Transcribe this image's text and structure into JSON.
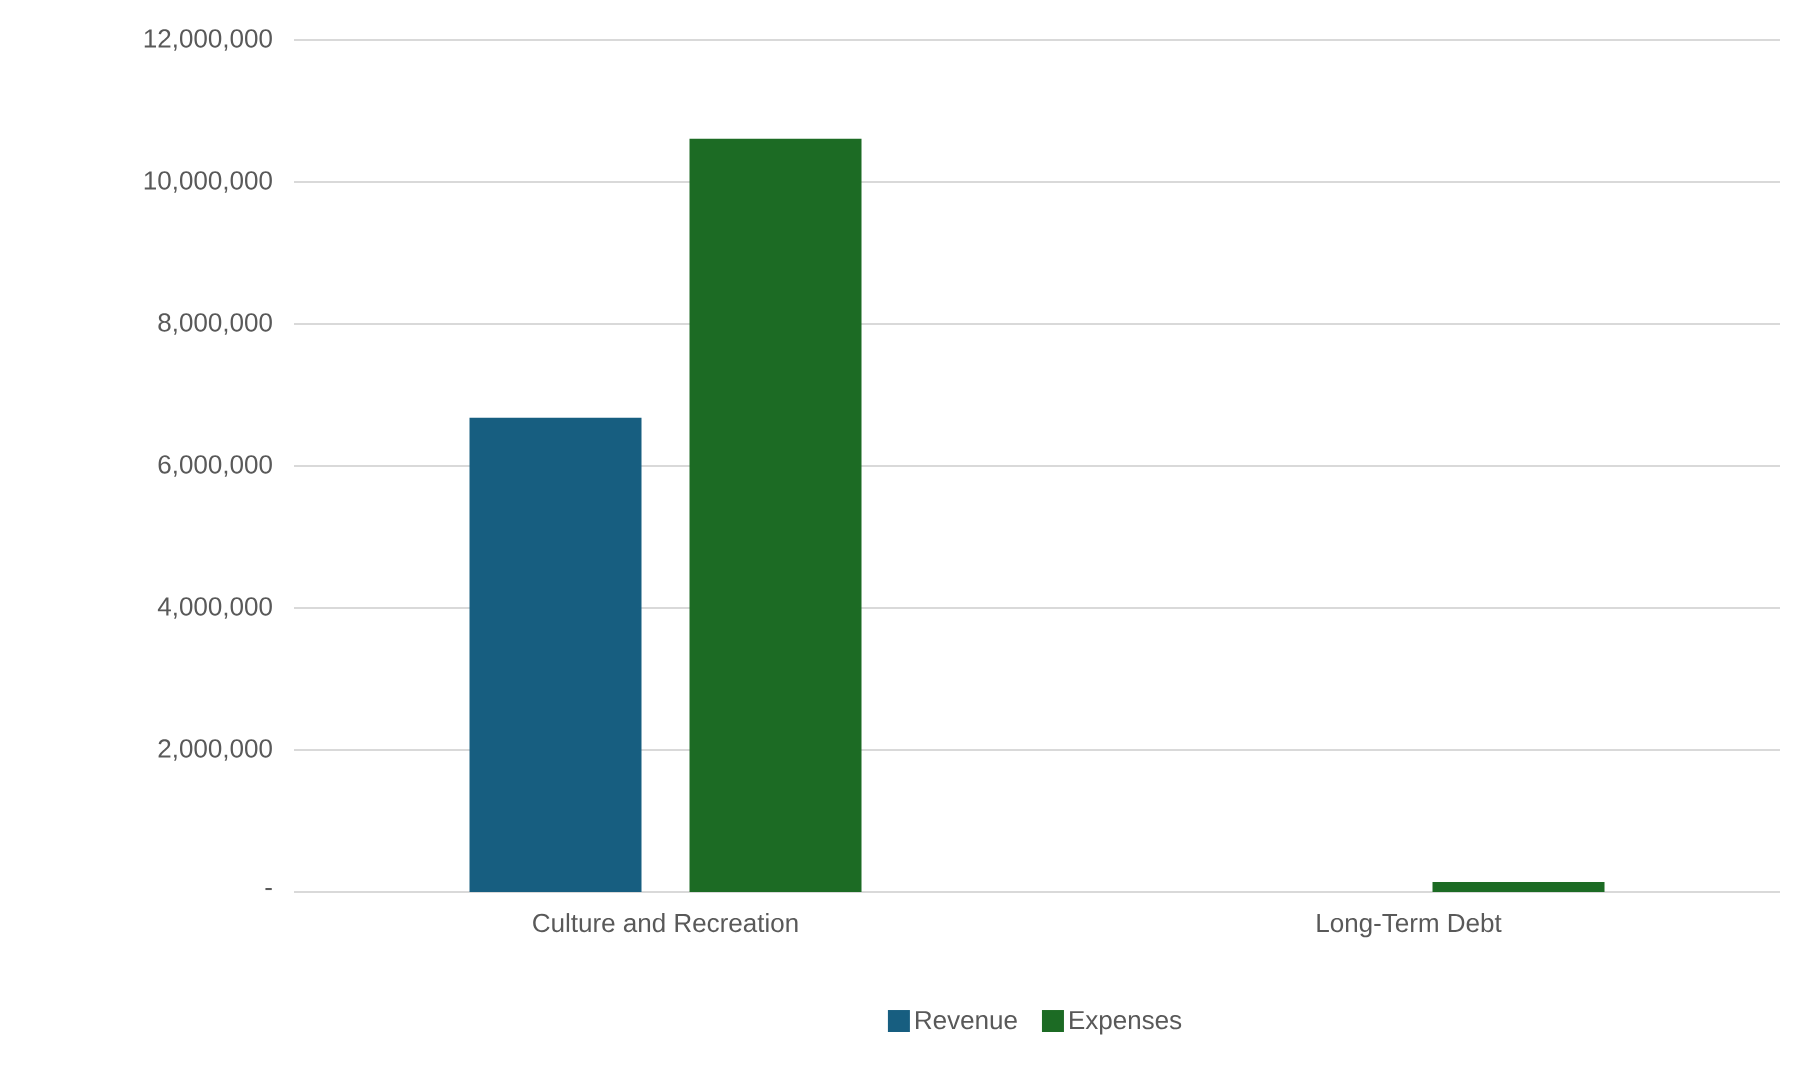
{
  "chart_data": {
    "type": "bar",
    "categories": [
      "Culture and Recreation",
      "Long-Term Debt"
    ],
    "series": [
      {
        "name": "Revenue",
        "color": "#175e80",
        "values": [
          6680000,
          0
        ]
      },
      {
        "name": "Expenses",
        "color": "#1c6b24",
        "values": [
          10610000,
          140000
        ]
      }
    ],
    "ylim": [
      0,
      12000000
    ],
    "yticks": [
      {
        "value": 0,
        "label": "-"
      },
      {
        "value": 2000000,
        "label": "2,000,000"
      },
      {
        "value": 4000000,
        "label": "4,000,000"
      },
      {
        "value": 6000000,
        "label": "6,000,000"
      },
      {
        "value": 8000000,
        "label": "8,000,000"
      },
      {
        "value": 10000000,
        "label": "10,000,000"
      },
      {
        "value": 12000000,
        "label": "12,000,000"
      }
    ],
    "grid": "y",
    "legend": "bottom"
  }
}
